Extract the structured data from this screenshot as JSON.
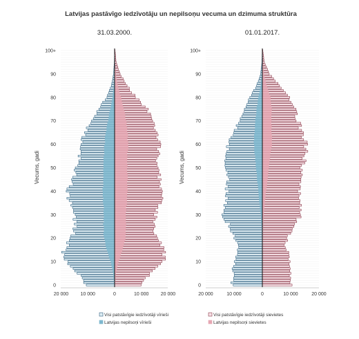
{
  "chart_data": {
    "type": "population-pyramid",
    "title": "Latvijas pastāvīgo iedzīvotāju un nepilsoņu vecuma un dzimuma struktūra",
    "ylabel": "Vecums, gadi",
    "y_ticks": [
      "0",
      "10",
      "20",
      "30",
      "40",
      "50",
      "60",
      "70",
      "80",
      "90",
      "100+"
    ],
    "x_ticks": [
      "20 000",
      "10 000",
      "0",
      "10 000",
      "20 000"
    ],
    "xlim": [
      -20000,
      20000
    ],
    "ages": "0..100+",
    "legend": [
      {
        "label": "Visi patstāvīgie iedzīvotāji vīrieši",
        "color": "#dfeef4",
        "stroke": "#2f5f7f"
      },
      {
        "label": "Latvijas nepilsoņi vīrieši",
        "color": "#7fb8cf",
        "stroke": "#7fb8cf"
      },
      {
        "label": "Visi patstāvīgie iedzīvotāji sievietes",
        "color": "#f7e1e6",
        "stroke": "#8a3a4a"
      },
      {
        "label": "Latvijas nepilsoņi sievietes",
        "color": "#e6a8b4",
        "stroke": "#e6a8b4"
      }
    ],
    "panels": [
      {
        "title": "31.03.2000.",
        "keyframes": {
          "total_male": [
            [
              0,
              11000
            ],
            [
              2,
              11500
            ],
            [
              5,
              13500
            ],
            [
              10,
              18500
            ],
            [
              14,
              19000
            ],
            [
              17,
              17500
            ],
            [
              20,
              16000
            ],
            [
              25,
              14500
            ],
            [
              30,
              15000
            ],
            [
              35,
              16500
            ],
            [
              40,
              17500
            ],
            [
              45,
              15500
            ],
            [
              50,
              14000
            ],
            [
              55,
              13000
            ],
            [
              60,
              12500
            ],
            [
              65,
              11000
            ],
            [
              70,
              8500
            ],
            [
              75,
              6000
            ],
            [
              80,
              3000
            ],
            [
              85,
              1200
            ],
            [
              90,
              400
            ],
            [
              95,
              100
            ],
            [
              100,
              20
            ]
          ],
          "total_female": [
            [
              0,
              10500
            ],
            [
              2,
              11000
            ],
            [
              5,
              13000
            ],
            [
              10,
              18000
            ],
            [
              14,
              18500
            ],
            [
              17,
              17000
            ],
            [
              20,
              16000
            ],
            [
              25,
              14500
            ],
            [
              30,
              15500
            ],
            [
              35,
              17000
            ],
            [
              40,
              18000
            ],
            [
              45,
              16500
            ],
            [
              50,
              16000
            ],
            [
              55,
              16000
            ],
            [
              60,
              16500
            ],
            [
              65,
              15500
            ],
            [
              70,
              14000
            ],
            [
              75,
              12000
            ],
            [
              80,
              8000
            ],
            [
              85,
              4500
            ],
            [
              90,
              2000
            ],
            [
              95,
              600
            ],
            [
              100,
              150
            ]
          ],
          "noncit_male": [
            [
              0,
              200
            ],
            [
              5,
              500
            ],
            [
              10,
              1500
            ],
            [
              15,
              3000
            ],
            [
              20,
              4000
            ],
            [
              25,
              4200
            ],
            [
              30,
              4000
            ],
            [
              35,
              4200
            ],
            [
              40,
              4500
            ],
            [
              45,
              4300
            ],
            [
              50,
              4200
            ],
            [
              55,
              4000
            ],
            [
              60,
              3800
            ],
            [
              65,
              3200
            ],
            [
              70,
              2500
            ],
            [
              75,
              1600
            ],
            [
              80,
              800
            ],
            [
              85,
              300
            ],
            [
              90,
              100
            ],
            [
              95,
              30
            ],
            [
              100,
              5
            ]
          ],
          "noncit_female": [
            [
              0,
              200
            ],
            [
              5,
              500
            ],
            [
              10,
              1500
            ],
            [
              15,
              3000
            ],
            [
              20,
              4000
            ],
            [
              25,
              4200
            ],
            [
              30,
              4200
            ],
            [
              35,
              4500
            ],
            [
              40,
              4800
            ],
            [
              45,
              4800
            ],
            [
              50,
              4800
            ],
            [
              55,
              4800
            ],
            [
              60,
              5000
            ],
            [
              65,
              4800
            ],
            [
              70,
              4300
            ],
            [
              75,
              3500
            ],
            [
              80,
              2400
            ],
            [
              85,
              1200
            ],
            [
              90,
              500
            ],
            [
              95,
              150
            ],
            [
              100,
              30
            ]
          ]
        }
      },
      {
        "title": "01.01.2017.",
        "keyframes": {
          "total_male": [
            [
              0,
              10500
            ],
            [
              5,
              10500
            ],
            [
              10,
              9800
            ],
            [
              14,
              9000
            ],
            [
              17,
              8000
            ],
            [
              20,
              9500
            ],
            [
              25,
              11500
            ],
            [
              30,
              14000
            ],
            [
              35,
              13000
            ],
            [
              40,
              12500
            ],
            [
              45,
              12000
            ],
            [
              50,
              12500
            ],
            [
              55,
              13000
            ],
            [
              60,
              12000
            ],
            [
              65,
              10000
            ],
            [
              70,
              8000
            ],
            [
              75,
              6500
            ],
            [
              80,
              4500
            ],
            [
              85,
              2000
            ],
            [
              90,
              600
            ],
            [
              95,
              150
            ],
            [
              100,
              30
            ]
          ],
          "total_female": [
            [
              0,
              10000
            ],
            [
              5,
              10000
            ],
            [
              10,
              9500
            ],
            [
              14,
              8800
            ],
            [
              17,
              8000
            ],
            [
              20,
              9000
            ],
            [
              25,
              11000
            ],
            [
              30,
              13500
            ],
            [
              35,
              13000
            ],
            [
              40,
              13000
            ],
            [
              45,
              13000
            ],
            [
              50,
              14000
            ],
            [
              55,
              15000
            ],
            [
              60,
              15500
            ],
            [
              65,
              14000
            ],
            [
              70,
              12500
            ],
            [
              75,
              11500
            ],
            [
              80,
              9500
            ],
            [
              85,
              6000
            ],
            [
              90,
              2500
            ],
            [
              95,
              700
            ],
            [
              100,
              150
            ]
          ],
          "noncit_male": [
            [
              0,
              20
            ],
            [
              10,
              50
            ],
            [
              15,
              80
            ],
            [
              20,
              150
            ],
            [
              25,
              300
            ],
            [
              30,
              600
            ],
            [
              35,
              1000
            ],
            [
              40,
              1400
            ],
            [
              45,
              1800
            ],
            [
              50,
              2200
            ],
            [
              55,
              2600
            ],
            [
              60,
              3000
            ],
            [
              65,
              2800
            ],
            [
              70,
              2400
            ],
            [
              75,
              2000
            ],
            [
              80,
              1400
            ],
            [
              85,
              600
            ],
            [
              90,
              200
            ],
            [
              95,
              50
            ],
            [
              100,
              10
            ]
          ],
          "noncit_female": [
            [
              0,
              20
            ],
            [
              10,
              50
            ],
            [
              15,
              80
            ],
            [
              20,
              150
            ],
            [
              25,
              300
            ],
            [
              30,
              500
            ],
            [
              35,
              900
            ],
            [
              40,
              1300
            ],
            [
              45,
              1800
            ],
            [
              50,
              2300
            ],
            [
              55,
              2800
            ],
            [
              60,
              3300
            ],
            [
              65,
              3300
            ],
            [
              70,
              3200
            ],
            [
              75,
              3300
            ],
            [
              80,
              2900
            ],
            [
              85,
              1500
            ],
            [
              90,
              600
            ],
            [
              95,
              150
            ],
            [
              100,
              30
            ]
          ]
        }
      }
    ]
  }
}
